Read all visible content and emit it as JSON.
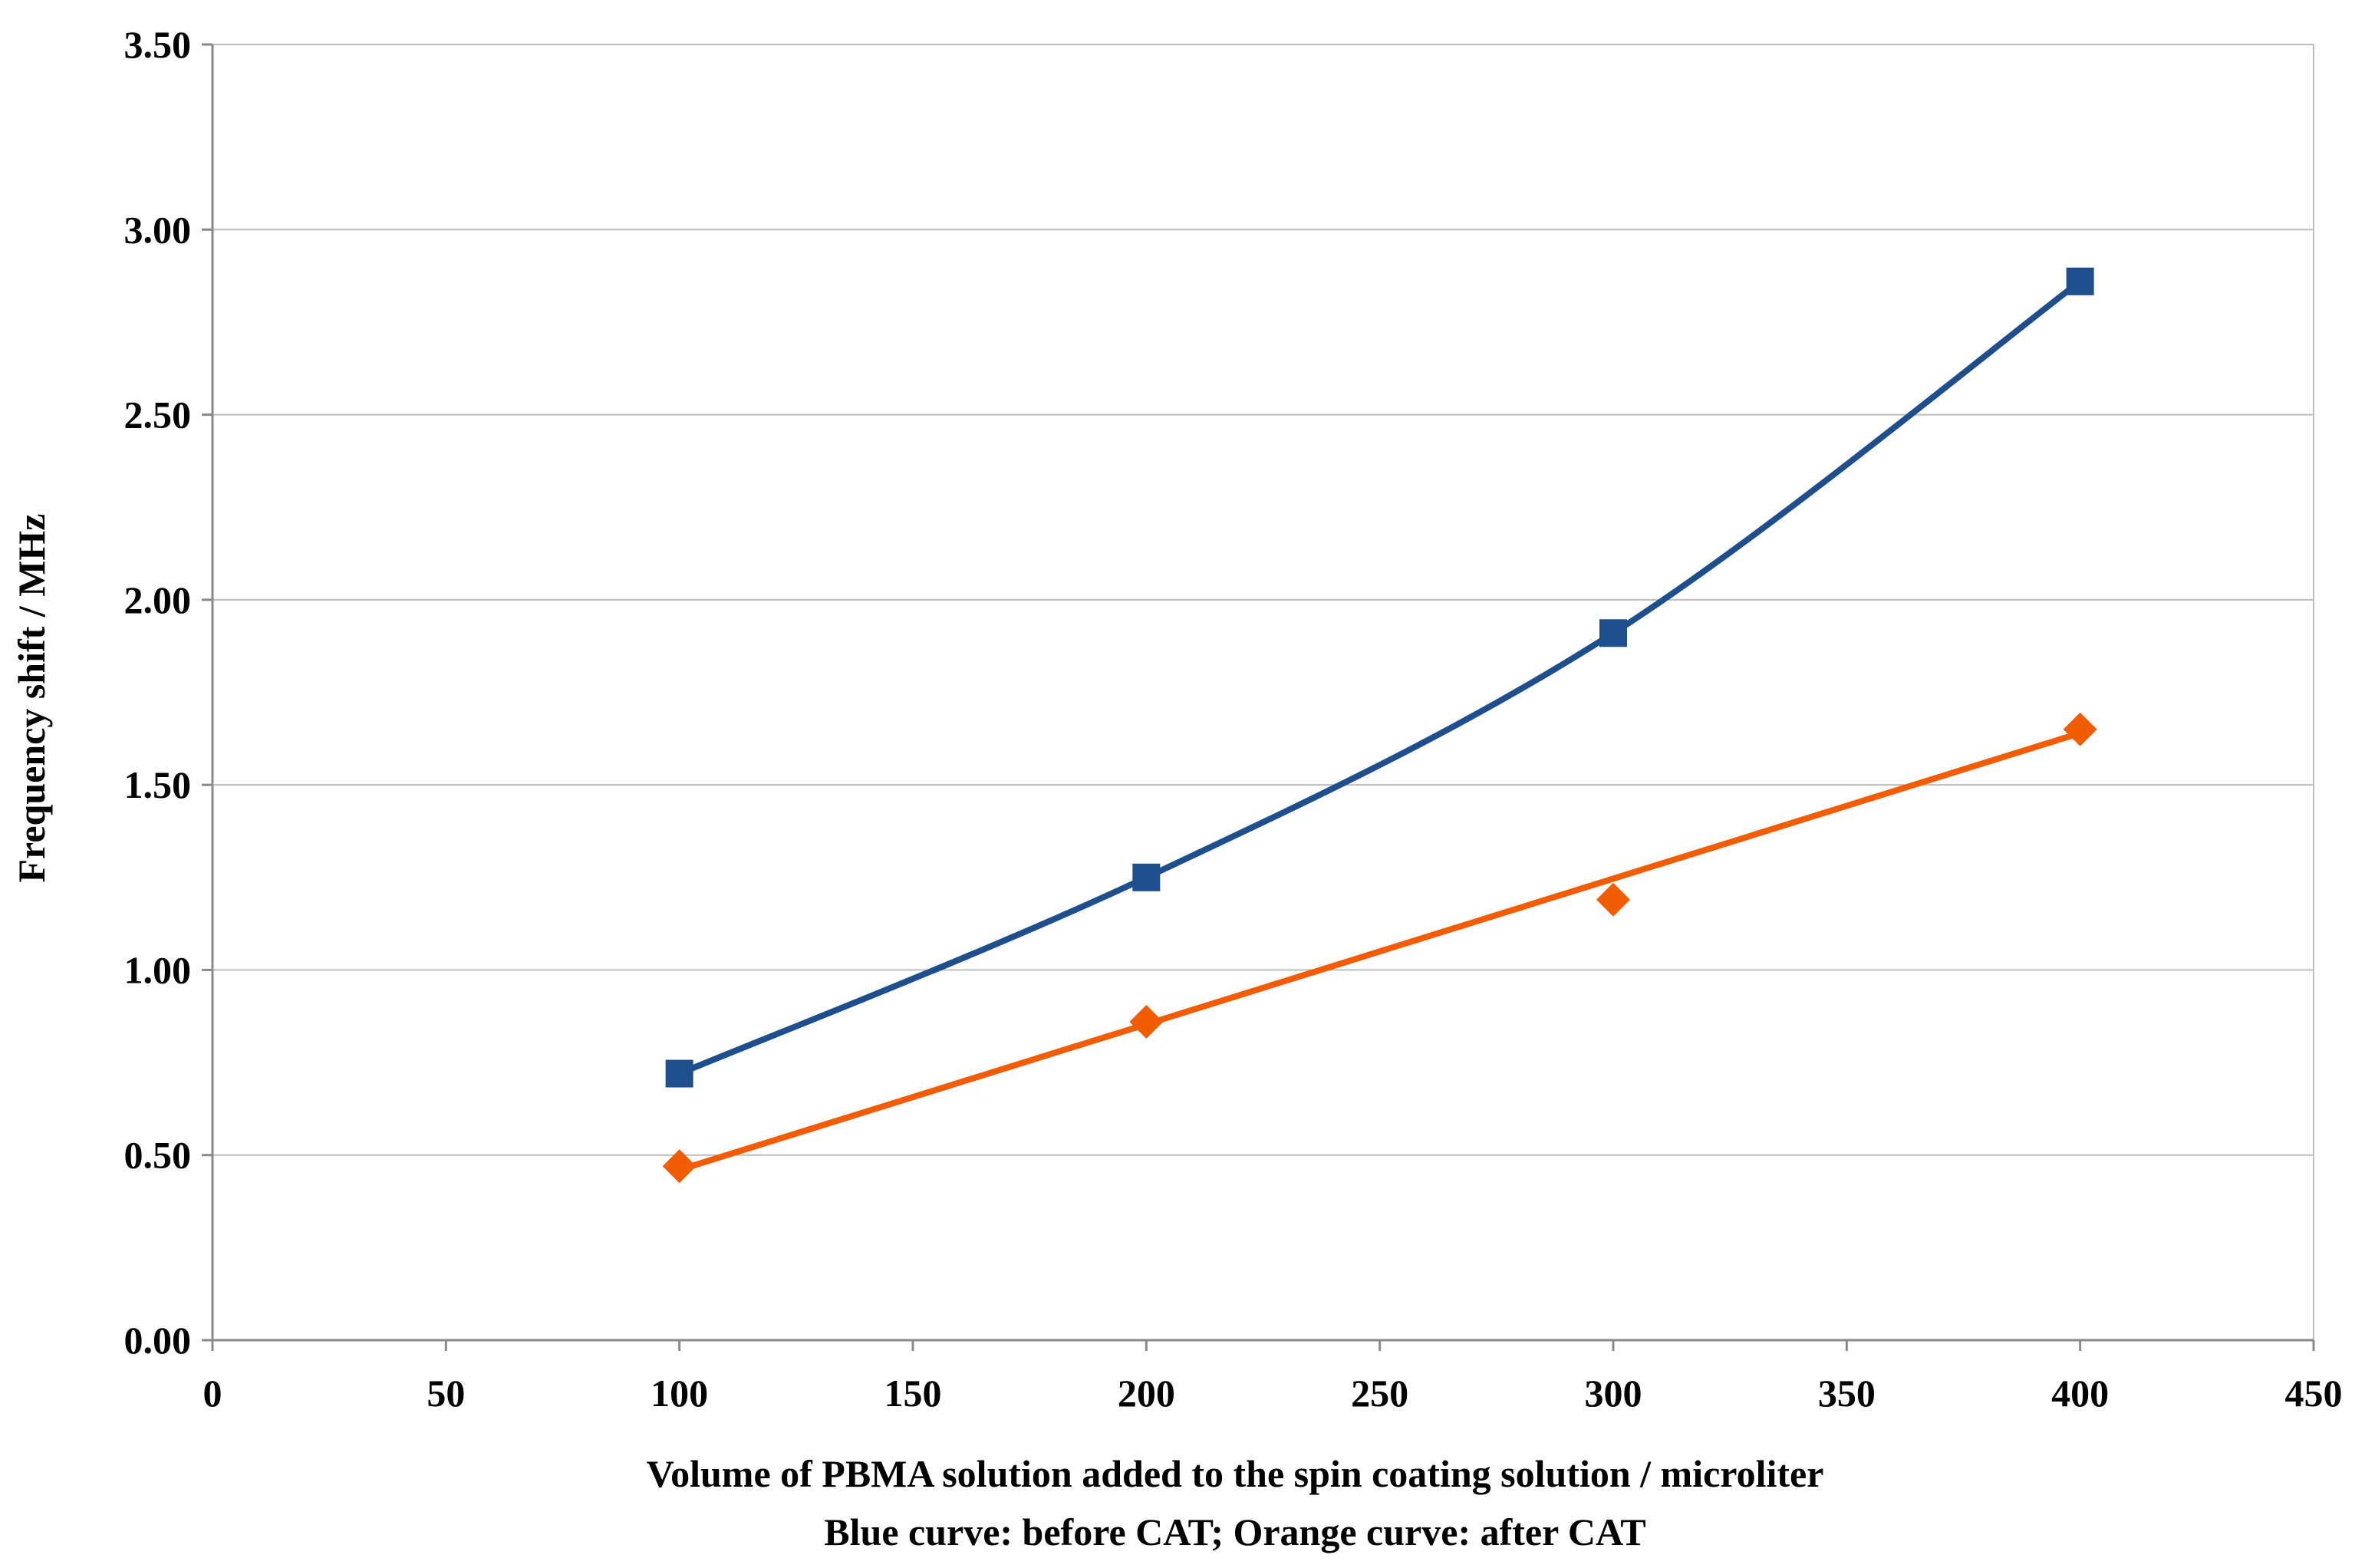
{
  "chart_data": {
    "type": "line",
    "title": "",
    "xlabel": "Volume of PBMA solution added to the spin coating solution / microliter",
    "subtitle": "Blue curve: before CAT; Orange curve: after CAT",
    "ylabel": "Frequency shift  / MHz",
    "xlim": [
      0,
      450
    ],
    "ylim": [
      0,
      3.5
    ],
    "x_ticks": [
      "0",
      "50",
      "100",
      "150",
      "200",
      "250",
      "300",
      "350",
      "400",
      "450"
    ],
    "y_ticks": [
      "0.00",
      "0.50",
      "1.00",
      "1.50",
      "2.00",
      "2.50",
      "3.00",
      "3.50"
    ],
    "grid": "horizontal",
    "series": [
      {
        "name": "before CAT",
        "color": "#1F4E8C",
        "marker": "square",
        "line": "smooth",
        "x": [
          100,
          200,
          300,
          400
        ],
        "y": [
          0.72,
          1.25,
          1.91,
          2.86
        ]
      },
      {
        "name": "after CAT",
        "color": "#F25C05",
        "marker": "diamond",
        "line": "linear-fit",
        "x": [
          100,
          200,
          300,
          400
        ],
        "y": [
          0.47,
          0.86,
          1.19,
          1.65
        ],
        "fit": [
          0.46,
          1.64
        ]
      }
    ]
  }
}
